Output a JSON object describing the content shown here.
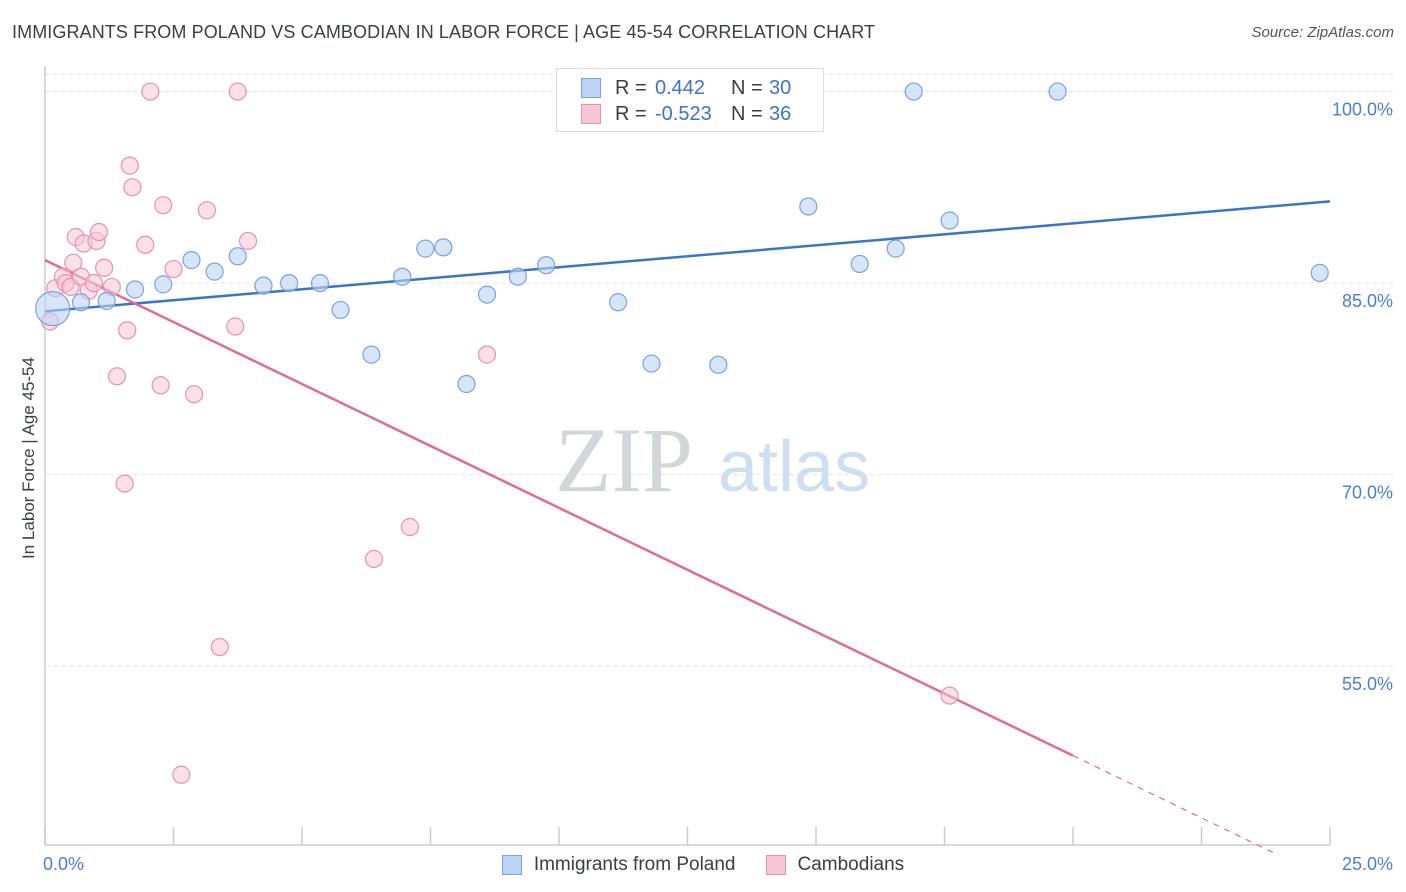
{
  "title": "IMMIGRANTS FROM POLAND VS CAMBODIAN IN LABOR FORCE | AGE 45-54 CORRELATION CHART",
  "source": "Source: ZipAtlas.com",
  "watermark": {
    "zip": "ZIP",
    "atlas": "atlas"
  },
  "legend_top": [
    {
      "r_label": "R =",
      "r_value": "0.442",
      "n_label": "N =",
      "n_value": "30"
    },
    {
      "r_label": "R =",
      "r_value": "-0.523",
      "n_label": "N =",
      "n_value": "36"
    }
  ],
  "legend_bottom": [
    "Immigrants from Poland",
    "Cambodians"
  ],
  "colors": {
    "poland_fill": "#bcd3f5",
    "poland_stroke": "#7aa3de",
    "poland_line": "#3b75c9",
    "cambodian_fill": "#f8c6d5",
    "cambodian_stroke": "#e693ae",
    "cambodian_line": "#e06c96",
    "grid": "#dfe3e8",
    "axis_text": "#4a7fd0"
  },
  "chart_data": {
    "type": "scatter",
    "xlabel": "",
    "ylabel": "In Labor Force | Age 45-54",
    "xlim": [
      0,
      25
    ],
    "ylim": [
      41,
      102
    ],
    "x_tick_labels": [
      "0.0%",
      "25.0%"
    ],
    "y_ticks": [
      100,
      85,
      70,
      55
    ],
    "y_tick_labels": [
      "100.0%",
      "85.0%",
      "70.0%",
      "55.0%"
    ],
    "series": [
      {
        "name": "Immigrants from Poland",
        "R": 0.442,
        "N": 30,
        "points": [
          [
            0.15,
            83.0
          ],
          [
            0.7,
            83.5
          ],
          [
            1.2,
            83.6
          ],
          [
            1.75,
            84.5
          ],
          [
            2.3,
            84.9
          ],
          [
            2.85,
            86.8
          ],
          [
            3.3,
            85.9
          ],
          [
            3.75,
            87.1
          ],
          [
            4.25,
            84.8
          ],
          [
            4.75,
            85.0
          ],
          [
            5.35,
            85.0
          ],
          [
            5.75,
            82.9
          ],
          [
            6.35,
            79.4
          ],
          [
            6.95,
            85.5
          ],
          [
            7.4,
            87.7
          ],
          [
            7.75,
            87.8
          ],
          [
            8.2,
            77.1
          ],
          [
            8.6,
            84.1
          ],
          [
            9.2,
            85.5
          ],
          [
            9.75,
            86.4
          ],
          [
            11.15,
            83.5
          ],
          [
            11.8,
            78.7
          ],
          [
            13.1,
            78.6
          ],
          [
            14.85,
            91.0
          ],
          [
            15.85,
            86.5
          ],
          [
            16.55,
            87.7
          ],
          [
            16.9,
            100.0
          ],
          [
            17.6,
            89.9
          ],
          [
            19.7,
            100.0
          ],
          [
            24.8,
            85.8
          ]
        ],
        "trend": {
          "x": [
            0,
            25
          ],
          "y": [
            82.8,
            91.4
          ]
        }
      },
      {
        "name": "Cambodians",
        "R": -0.523,
        "N": 36,
        "points": [
          [
            0.1,
            82.0
          ],
          [
            0.2,
            84.6
          ],
          [
            0.35,
            85.5
          ],
          [
            0.4,
            85.0
          ],
          [
            0.5,
            84.7
          ],
          [
            0.55,
            86.6
          ],
          [
            0.6,
            88.6
          ],
          [
            0.7,
            85.5
          ],
          [
            0.75,
            88.1
          ],
          [
            0.85,
            84.4
          ],
          [
            0.95,
            85.0
          ],
          [
            1.0,
            88.3
          ],
          [
            1.05,
            89.0
          ],
          [
            1.15,
            86.2
          ],
          [
            1.3,
            84.7
          ],
          [
            1.4,
            77.7
          ],
          [
            1.55,
            69.3
          ],
          [
            1.6,
            81.3
          ],
          [
            1.65,
            94.2
          ],
          [
            1.7,
            92.5
          ],
          [
            1.95,
            88.0
          ],
          [
            2.05,
            100.0
          ],
          [
            2.25,
            77.0
          ],
          [
            2.3,
            91.1
          ],
          [
            2.5,
            86.1
          ],
          [
            2.65,
            46.5
          ],
          [
            2.9,
            76.3
          ],
          [
            3.15,
            90.7
          ],
          [
            3.4,
            56.5
          ],
          [
            3.7,
            81.6
          ],
          [
            3.75,
            100.0
          ],
          [
            3.95,
            88.3
          ],
          [
            6.4,
            63.4
          ],
          [
            7.1,
            65.9
          ],
          [
            8.6,
            79.4
          ],
          [
            17.6,
            52.7
          ]
        ],
        "trend": {
          "x": [
            0,
            20
          ],
          "y": [
            86.8,
            48.0
          ]
        },
        "trend_extension": {
          "x": [
            20,
            24.0
          ],
          "y": [
            48.0,
            40.2
          ]
        }
      }
    ]
  }
}
